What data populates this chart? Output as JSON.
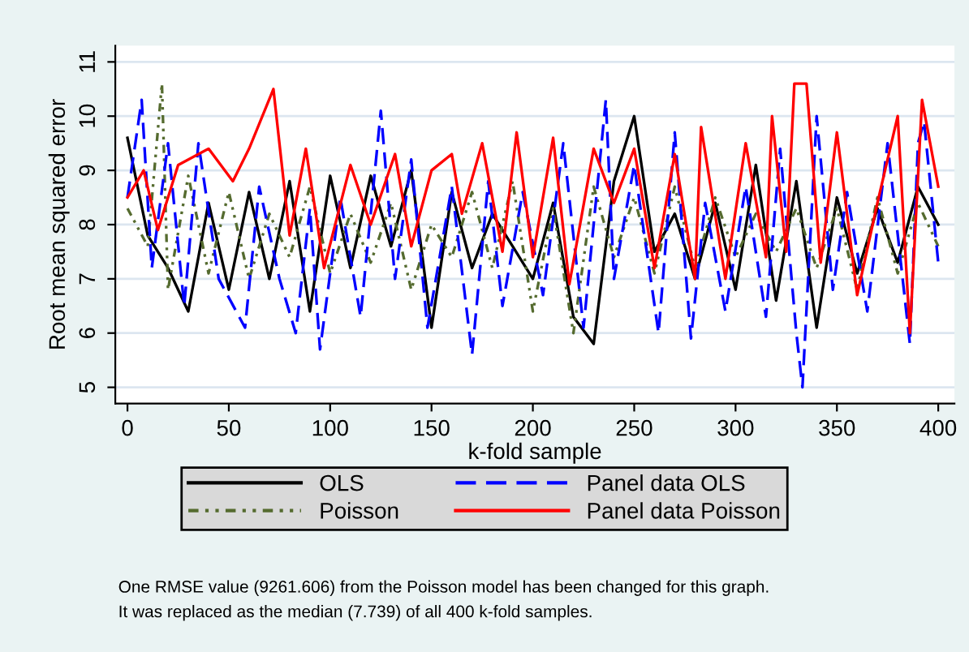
{
  "chart_data": {
    "type": "line",
    "xlabel": "k-fold sample",
    "ylabel": "Root mean squared error",
    "xlim": [
      -6,
      408
    ],
    "ylim": [
      4.7,
      11.3
    ],
    "xticks": [
      0,
      50,
      100,
      150,
      200,
      250,
      300,
      350,
      400
    ],
    "yticks": [
      5,
      6,
      7,
      8,
      9,
      10,
      11
    ],
    "grid": "y",
    "legend": "bottom",
    "annotations": [
      "One RMSE value (9261.606) from the Poisson model has been changed for this graph.",
      "It was replaced as the median (7.739) of all 400 k-fold samples."
    ],
    "series": [
      {
        "name": "OLS",
        "color": "#000000",
        "line_style": "solid",
        "x": [
          0,
          10,
          20,
          30,
          40,
          50,
          60,
          70,
          80,
          90,
          100,
          110,
          120,
          130,
          140,
          150,
          160,
          170,
          180,
          190,
          200,
          210,
          220,
          230,
          240,
          250,
          260,
          270,
          280,
          290,
          300,
          310,
          320,
          330,
          340,
          350,
          360,
          370,
          380,
          390,
          400
        ],
        "values": [
          9.6,
          7.8,
          7.2,
          6.4,
          8.4,
          6.8,
          8.6,
          7.0,
          8.8,
          6.4,
          8.9,
          7.2,
          8.9,
          7.6,
          9.0,
          6.1,
          8.6,
          7.2,
          8.2,
          7.6,
          7.0,
          8.4,
          6.3,
          5.8,
          8.8,
          10.0,
          7.5,
          8.2,
          7.0,
          8.4,
          6.8,
          9.1,
          6.6,
          8.8,
          6.1,
          8.5,
          7.1,
          8.3,
          7.3,
          8.7,
          8.0
        ]
      },
      {
        "name": "Poisson",
        "color": "#556b2f",
        "line_style": "dashdot",
        "x": [
          0,
          10,
          17,
          20,
          30,
          40,
          50,
          60,
          70,
          80,
          90,
          100,
          110,
          120,
          130,
          140,
          150,
          160,
          170,
          180,
          190,
          200,
          210,
          220,
          230,
          240,
          250,
          260,
          270,
          280,
          290,
          300,
          310,
          320,
          330,
          340,
          350,
          360,
          370,
          380,
          390,
          400
        ],
        "values": [
          8.3,
          7.6,
          10.6,
          6.8,
          8.9,
          7.1,
          8.6,
          7.0,
          8.2,
          7.4,
          8.7,
          7.1,
          8.2,
          7.3,
          8.4,
          6.8,
          8.0,
          7.4,
          8.6,
          7.2,
          8.8,
          6.4,
          8.3,
          6.0,
          8.7,
          7.4,
          8.5,
          7.1,
          8.7,
          7.2,
          8.5,
          7.4,
          8.2,
          7.5,
          8.3,
          7.2,
          8.3,
          6.8,
          8.5,
          7.1,
          8.4,
          7.6
        ]
      },
      {
        "name": "Panel data OLS",
        "color": "#0000ff",
        "line_style": "dashed",
        "x": [
          0,
          7,
          12,
          20,
          28,
          35,
          45,
          58,
          65,
          75,
          83,
          90,
          95,
          105,
          115,
          125,
          132,
          140,
          148,
          160,
          170,
          178,
          185,
          195,
          205,
          215,
          225,
          236,
          240,
          250,
          262,
          270,
          278,
          285,
          295,
          305,
          315,
          322,
          330,
          333,
          340,
          348,
          355,
          365,
          375,
          386,
          390,
          393,
          400
        ],
        "values": [
          8.5,
          10.3,
          7.2,
          9.5,
          6.5,
          9.5,
          7.0,
          6.1,
          8.7,
          7.0,
          6.0,
          8.3,
          5.7,
          8.5,
          6.3,
          10.1,
          7.0,
          9.2,
          6.1,
          8.7,
          5.6,
          8.8,
          6.5,
          8.6,
          6.7,
          9.5,
          6.1,
          10.3,
          7.0,
          9.1,
          6.0,
          9.7,
          5.9,
          8.4,
          6.4,
          8.7,
          6.3,
          9.4,
          6.0,
          5.0,
          10.0,
          6.8,
          8.6,
          6.4,
          9.5,
          5.8,
          9.5,
          9.9,
          7.3
        ]
      },
      {
        "name": "Panel data Poisson",
        "color": "#ff0000",
        "line_style": "solid",
        "x": [
          0,
          8,
          15,
          25,
          40,
          52,
          60,
          72,
          80,
          88,
          97,
          110,
          120,
          132,
          140,
          150,
          160,
          165,
          175,
          185,
          192,
          200,
          210,
          218,
          230,
          240,
          250,
          260,
          270,
          280,
          283,
          295,
          305,
          315,
          318,
          325,
          329,
          335,
          342,
          350,
          360,
          370,
          380,
          386,
          392,
          400
        ],
        "values": [
          8.5,
          9.0,
          7.9,
          9.1,
          9.4,
          8.8,
          9.4,
          10.5,
          7.8,
          9.4,
          7.2,
          9.1,
          8.0,
          9.3,
          7.6,
          9.0,
          9.3,
          8.2,
          9.5,
          7.5,
          9.7,
          7.4,
          9.6,
          6.9,
          9.4,
          8.4,
          9.4,
          7.2,
          9.3,
          7.0,
          9.8,
          7.0,
          9.5,
          7.4,
          10.0,
          7.5,
          10.6,
          10.6,
          7.3,
          9.7,
          6.7,
          8.4,
          10.0,
          6.0,
          10.3,
          8.7
        ]
      }
    ]
  }
}
